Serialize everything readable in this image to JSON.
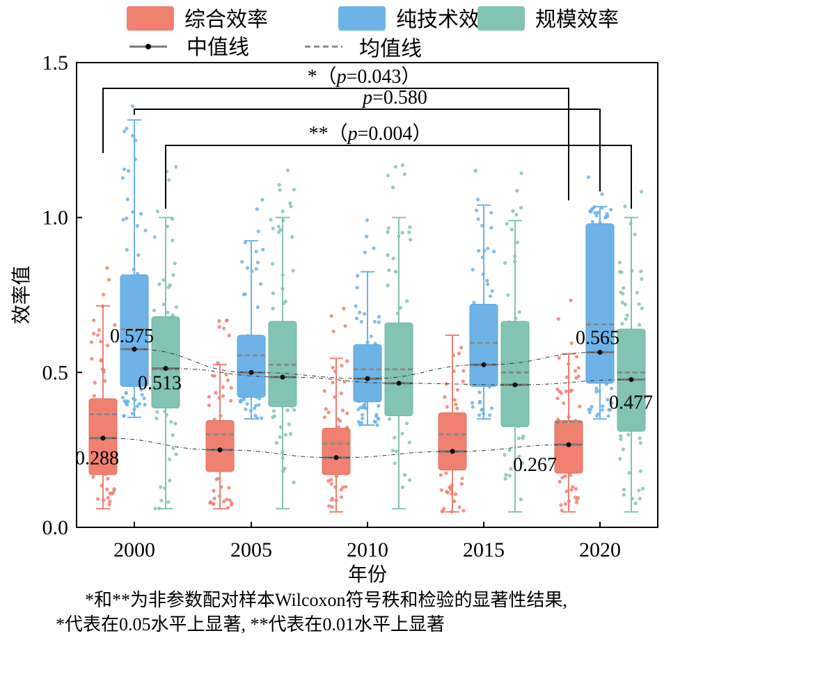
{
  "chart_data": {
    "type": "box",
    "ylabel": "效率值",
    "xlabel": "年份",
    "ylim": [
      0,
      1.5
    ],
    "yticks": [
      "0.0",
      "0.5",
      "1.0",
      "1.5"
    ],
    "categories": [
      "2000",
      "2005",
      "2010",
      "2015",
      "2020"
    ],
    "legend": {
      "series_labels": [
        "综合效率",
        "纯技术效率",
        "规模效率"
      ],
      "median_label": "中值线",
      "mean_label": "均值线"
    },
    "series": [
      {
        "name": "综合效率",
        "color": "#f08070",
        "boxes": [
          {
            "min": 0.06,
            "q1": 0.17,
            "median": 0.288,
            "mean": 0.365,
            "q3": 0.415,
            "max": 0.715
          },
          {
            "min": 0.06,
            "q1": 0.18,
            "median": 0.25,
            "mean": 0.3,
            "q3": 0.345,
            "max": 0.525
          },
          {
            "min": 0.05,
            "q1": 0.17,
            "median": 0.225,
            "mean": 0.27,
            "q3": 0.32,
            "max": 0.545
          },
          {
            "min": 0.05,
            "q1": 0.185,
            "median": 0.245,
            "mean": 0.3,
            "q3": 0.37,
            "max": 0.62
          },
          {
            "min": 0.05,
            "q1": 0.175,
            "median": 0.267,
            "mean": 0.34,
            "q3": 0.345,
            "max": 0.56
          }
        ]
      },
      {
        "name": "纯技术效率",
        "color": "#6db3e8",
        "boxes": [
          {
            "min": 0.355,
            "q1": 0.455,
            "median": 0.575,
            "mean": 0.64,
            "q3": 0.815,
            "max": 1.315
          },
          {
            "min": 0.35,
            "q1": 0.42,
            "median": 0.5,
            "mean": 0.555,
            "q3": 0.62,
            "max": 0.925
          },
          {
            "min": 0.33,
            "q1": 0.405,
            "median": 0.48,
            "mean": 0.51,
            "q3": 0.59,
            "max": 0.825
          },
          {
            "min": 0.35,
            "q1": 0.455,
            "median": 0.525,
            "mean": 0.595,
            "q3": 0.72,
            "max": 1.04
          },
          {
            "min": 0.35,
            "q1": 0.465,
            "median": 0.565,
            "mean": 0.655,
            "q3": 0.98,
            "max": 1.035
          }
        ]
      },
      {
        "name": "规模效率",
        "color": "#82c3b4",
        "boxes": [
          {
            "min": 0.06,
            "q1": 0.385,
            "median": 0.513,
            "mean": 0.51,
            "q3": 0.68,
            "max": 1.0
          },
          {
            "min": 0.06,
            "q1": 0.39,
            "median": 0.485,
            "mean": 0.525,
            "q3": 0.665,
            "max": 1.0
          },
          {
            "min": 0.06,
            "q1": 0.36,
            "median": 0.465,
            "mean": 0.51,
            "q3": 0.66,
            "max": 1.0
          },
          {
            "min": 0.05,
            "q1": 0.325,
            "median": 0.46,
            "mean": 0.5,
            "q3": 0.665,
            "max": 0.99
          },
          {
            "min": 0.05,
            "q1": 0.31,
            "median": 0.477,
            "mean": 0.5,
            "q3": 0.64,
            "max": 1.0
          }
        ]
      }
    ],
    "value_labels": [
      {
        "series": 0,
        "category": 0,
        "text": "0.288"
      },
      {
        "series": 1,
        "category": 0,
        "text": "0.575"
      },
      {
        "series": 2,
        "category": 0,
        "text": "0.513"
      },
      {
        "series": 0,
        "category": 4,
        "text": "0.267"
      },
      {
        "series": 1,
        "category": 4,
        "text": "0.565"
      },
      {
        "series": 2,
        "category": 4,
        "text": "0.477"
      }
    ],
    "significance": [
      {
        "series": 0,
        "from": 0,
        "to": 4,
        "prefix": "*（",
        "p": "p",
        "suffix": "=0.043）"
      },
      {
        "series": 1,
        "from": 0,
        "to": 4,
        "prefix": "",
        "p": "p",
        "suffix": "=0.580"
      },
      {
        "series": 2,
        "from": 0,
        "to": 4,
        "prefix": "**（",
        "p": "p",
        "suffix": "=0.004）"
      }
    ]
  },
  "footnote": {
    "line1": "*和**为非参数配对样本Wilcoxon符号秩和检验的显著性结果,",
    "line2": "*代表在0.05水平上显著, **代表在0.01水平上显著"
  }
}
